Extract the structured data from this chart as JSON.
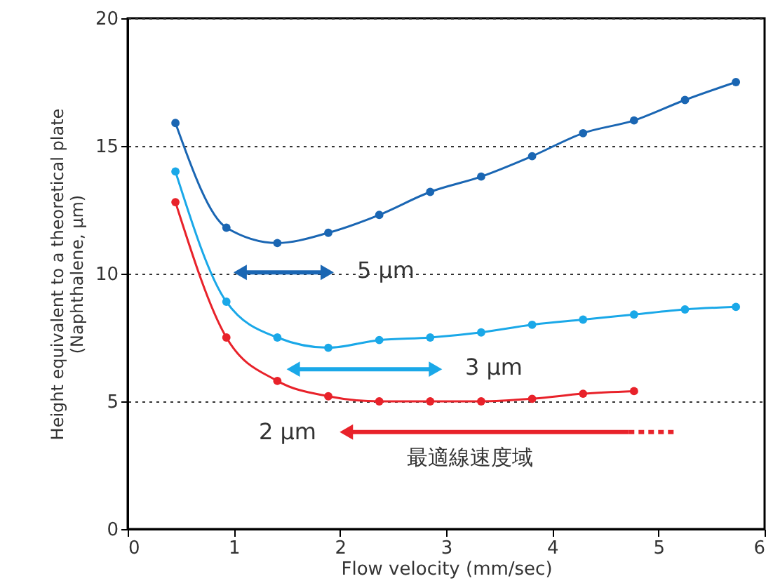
{
  "chart_data": {
    "type": "line",
    "xlabel": "Flow velocity (mm/sec)",
    "ylabel": "Height equivalent to a theoretical plate\n(Naphthalene, μm)",
    "xlim": [
      0,
      6
    ],
    "xticks": [
      0,
      1,
      2,
      3,
      4,
      5,
      6
    ],
    "ylim": [
      0,
      20
    ],
    "yticks": [
      0,
      5,
      10,
      15,
      20
    ],
    "grid": "y",
    "marker": "circle",
    "line_style": "solid",
    "series": [
      {
        "color": "#1a66b3",
        "x": [
          0.45,
          0.93,
          1.41,
          1.89,
          2.37,
          2.85,
          3.33,
          3.81,
          4.29,
          4.77,
          5.25,
          5.73
        ],
        "values": [
          15.9,
          11.8,
          11.2,
          11.6,
          12.3,
          13.2,
          13.8,
          14.6,
          15.5,
          16.0,
          16.8,
          17.5
        ]
      },
      {
        "color": "#1aa8e8",
        "x": [
          0.45,
          0.93,
          1.41,
          1.89,
          2.37,
          2.85,
          3.33,
          3.81,
          4.29,
          4.77,
          5.25,
          5.73
        ],
        "values": [
          14.0,
          8.9,
          7.5,
          7.1,
          7.4,
          7.5,
          7.7,
          8.0,
          8.2,
          8.4,
          8.6,
          8.7
        ]
      },
      {
        "color": "#e8222a",
        "x": [
          0.45,
          0.93,
          1.41,
          1.89,
          2.37,
          2.85,
          3.33,
          3.81,
          4.29,
          4.77
        ],
        "values": [
          12.8,
          7.5,
          5.8,
          5.2,
          5.0,
          5.0,
          5.0,
          5.1,
          5.3,
          5.4
        ]
      }
    ],
    "annotations": [
      "5 μm",
      "3 μm",
      "2 μm",
      "最適線速度域"
    ]
  }
}
